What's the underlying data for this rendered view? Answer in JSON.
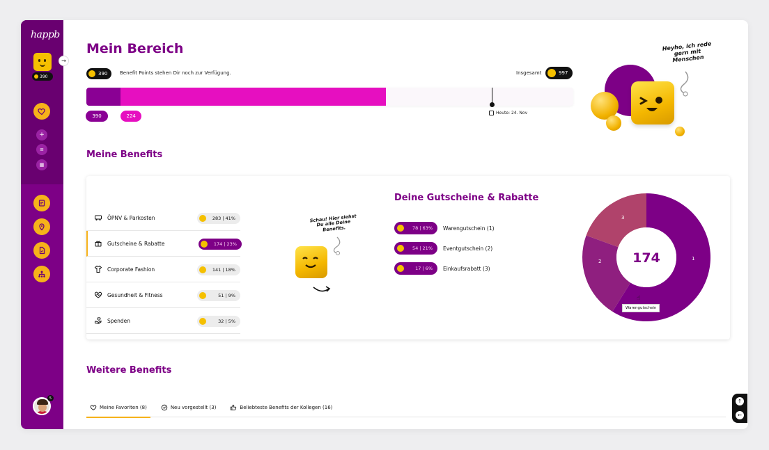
{
  "app": {
    "logo": "happb"
  },
  "sidebar": {
    "points": "390",
    "user_badge": "5"
  },
  "header": {
    "title": "Mein Bereich",
    "points_value": "390",
    "points_text": "Benefit Points stehen Dir noch zur Verfügung.",
    "total_label": "Insgesamt",
    "total_value": "997",
    "progress": {
      "total": 997,
      "used_a": 390,
      "used_b": 224,
      "label_a": "390",
      "label_b": "224",
      "today_label": "Heute: 24. Nov"
    },
    "mascot_speech": "Heyho, ich rede gern mit Menschen"
  },
  "benefits": {
    "heading": "Meine Benefits",
    "categories": [
      {
        "label": "ÖPNV & Parkosten",
        "value": "283 | 41%",
        "icon": "bus-icon"
      },
      {
        "label": "Gutscheine & Rabatte",
        "value": "174 | 23%",
        "icon": "gift-icon"
      },
      {
        "label": "Corporate Fashion",
        "value": "141 | 18%",
        "icon": "shirt-icon"
      },
      {
        "label": "Gesundheit & Fitness",
        "value": "51 | 9%",
        "icon": "heart-pulse-icon"
      },
      {
        "label": "Spenden",
        "value": "32 | 5%",
        "icon": "donate-icon"
      }
    ],
    "mascot_speech": "Schau! Hier siehst Du alle Deine Benefits.",
    "detail_title": "Deine Gutscheine & Rabatte",
    "details": [
      {
        "value": "78 | 63%",
        "label": "Warengutschein (1)"
      },
      {
        "value": "54 | 21%",
        "label": "Eventgutschein (2)"
      },
      {
        "value": "17 | 6%",
        "label": "Einkaufsrabatt (3)"
      }
    ],
    "donut": {
      "center": "174",
      "segment_labels": [
        "1",
        "2",
        "3"
      ],
      "tooltip": "Warengutschein"
    }
  },
  "further": {
    "heading": "Weitere Benefits",
    "tabs": [
      {
        "label": "Meine Favoriten (8)"
      },
      {
        "label": "Neu vorgestellt (3)"
      },
      {
        "label": "Beliebteste Benefits der Kollegen (16)"
      }
    ]
  },
  "colors": {
    "brand_purple": "#7d0086",
    "magenta": "#e60fc0",
    "accent_yellow": "#f6b21a",
    "donut_seg1": "#7d0086",
    "donut_seg2": "#8f1f7f",
    "donut_seg3": "#b0436b"
  }
}
